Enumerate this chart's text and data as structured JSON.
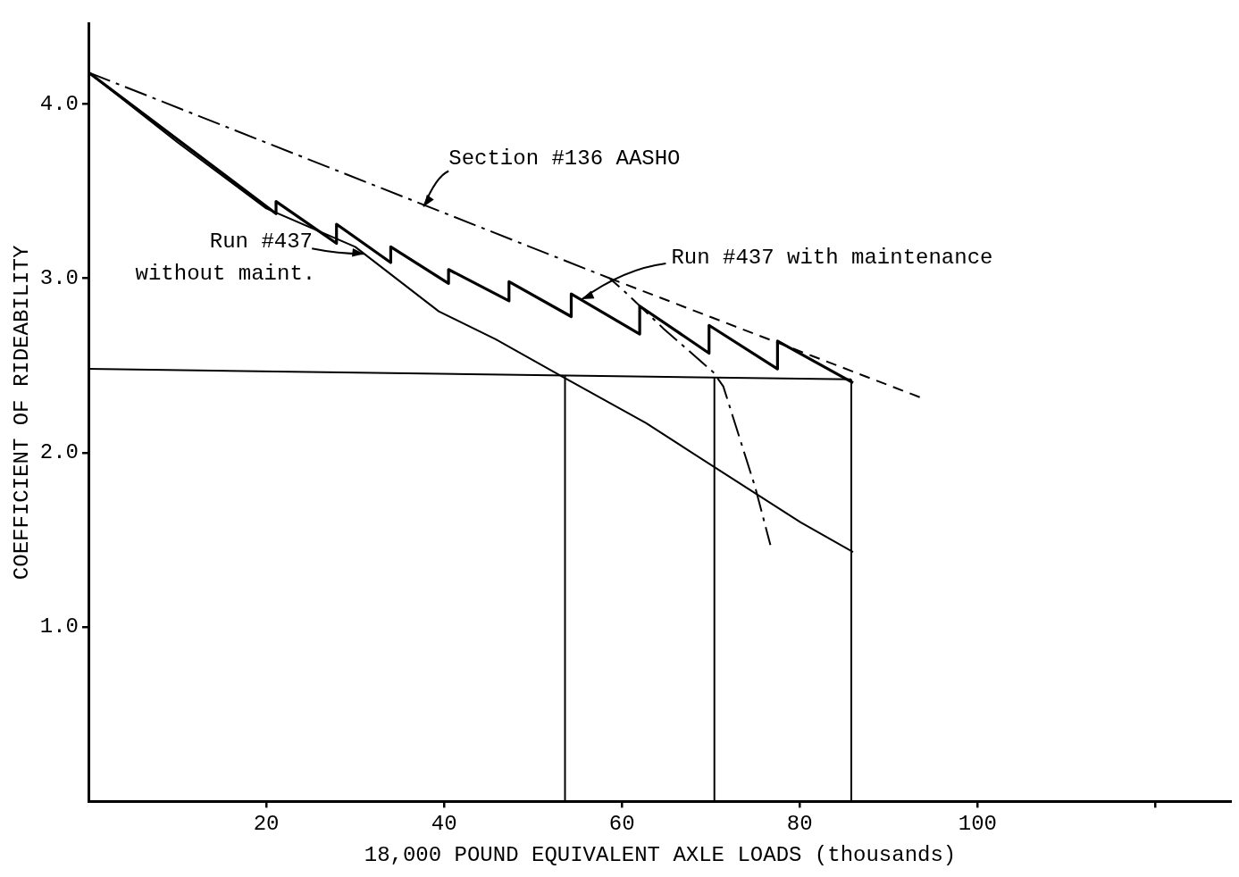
{
  "chart_data": {
    "type": "line",
    "xlabel": "18,000 POUND EQUIVALENT AXLE LOADS (thousands)",
    "ylabel": "COEFFICIENT OF RIDEABILITY",
    "xlim": [
      0,
      128.6
    ],
    "ylim": [
      0,
      4.46
    ],
    "xticks": [
      20,
      40,
      60,
      80,
      100,
      {
        "value": 120,
        "label": null
      }
    ],
    "yticks": [
      {
        "value": 1,
        "label": "1.0"
      },
      {
        "value": 2,
        "label": "2.0"
      },
      {
        "value": 3,
        "label": "3.0"
      },
      {
        "value": 4,
        "label": "4.0"
      }
    ],
    "marker": "none",
    "series": [
      {
        "type": "line",
        "color": "#000000",
        "line_style": "dashdot",
        "x": [
          0,
          58.6,
          60.6,
          64.7,
          70.3,
          71.4,
          75.0,
          76.7
        ],
        "values": [
          4.18,
          3.0,
          2.91,
          2.71,
          2.46,
          2.38,
          1.8,
          1.47
        ]
      },
      {
        "type": "line",
        "color": "#000000",
        "line_style": "dashed",
        "x": [
          58.6,
          93.9
        ],
        "values": [
          3.0,
          2.31
        ]
      },
      {
        "type": "line",
        "color": "#000000",
        "line_style": "solid",
        "x": [
          0,
          21.1,
          21.1,
          27.9,
          27.9,
          34.0,
          34.0,
          40.5,
          40.5,
          47.3,
          47.3,
          54.3,
          54.3,
          62.0,
          62.0,
          69.8,
          69.8,
          77.5,
          77.5,
          86.0
        ],
        "values": [
          4.18,
          3.37,
          3.44,
          3.2,
          3.31,
          3.09,
          3.18,
          2.97,
          3.05,
          2.87,
          2.98,
          2.78,
          2.91,
          2.68,
          2.84,
          2.57,
          2.73,
          2.48,
          2.64,
          2.4
        ]
      },
      {
        "type": "line",
        "color": "#000000",
        "line_style": "solid",
        "x": [
          0,
          10,
          20,
          30,
          39.4,
          45.8,
          53.5,
          62.7,
          70.3,
          80.1,
          86.0
        ],
        "values": [
          4.18,
          3.78,
          3.4,
          3.18,
          2.81,
          2.65,
          2.43,
          2.17,
          1.92,
          1.6,
          1.43
        ]
      },
      {
        "type": "line",
        "color": "#000000",
        "line_style": "solid",
        "x": [
          0,
          85.8
        ],
        "values": [
          2.48,
          2.42
        ]
      },
      {
        "type": "line",
        "color": "#000000",
        "line_style": "solid",
        "x": [
          53.6,
          53.6
        ],
        "values": [
          0,
          2.44
        ]
      },
      {
        "type": "line",
        "color": "#000000",
        "line_style": "solid",
        "x": [
          70.4,
          70.4
        ],
        "values": [
          0,
          2.43
        ]
      },
      {
        "type": "line",
        "color": "#000000",
        "line_style": "solid",
        "x": [
          85.8,
          85.8
        ],
        "values": [
          0,
          2.42
        ]
      }
    ],
    "annotations": [
      {
        "text": "Section #136 AASHO",
        "x": 37.7,
        "y": 3.41
      },
      {
        "text": "Run #437\nwithout maint.",
        "x": 31.0,
        "y": 3.14
      },
      {
        "text": "Run #437 with maintenance",
        "x": 55.5,
        "y": 2.88
      }
    ]
  }
}
